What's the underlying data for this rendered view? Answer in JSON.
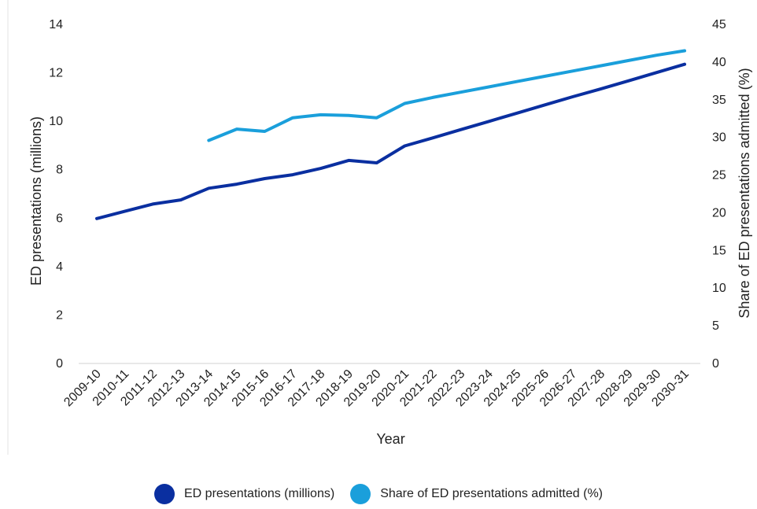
{
  "chart_data": {
    "type": "line",
    "xlabel": "Year",
    "ylabel": "ED presentations (millions)",
    "y2label": "Share of ED presentations admitted (%)",
    "ylim": [
      0,
      14
    ],
    "y2lim": [
      0,
      45
    ],
    "yticks": [
      "0",
      "2",
      "4",
      "6",
      "8",
      "10",
      "12",
      "14"
    ],
    "y2ticks": [
      "0",
      "5",
      "10",
      "15",
      "20",
      "25",
      "30",
      "35",
      "40",
      "45"
    ],
    "categories": [
      "2009-10",
      "2010-11",
      "2011-12",
      "2012-13",
      "2013-14",
      "2014-15",
      "2015-16",
      "2016-17",
      "2017-18",
      "2018-19",
      "2019-20",
      "2020-21",
      "2021-22",
      "2022-23",
      "2023-24",
      "2024-25",
      "2025-26",
      "2026-27",
      "2027-28",
      "2028-29",
      "2029-30",
      "2030-31"
    ],
    "series": [
      {
        "name": "ED presentations (millions)",
        "axis": "left",
        "color": "#0a2fa0",
        "values": [
          5.95,
          6.25,
          6.55,
          6.72,
          7.2,
          7.37,
          7.6,
          7.76,
          8.02,
          8.35,
          8.25,
          8.95,
          9.28,
          9.62,
          9.96,
          10.3,
          10.64,
          10.98,
          11.3,
          11.64,
          11.98,
          12.32
        ]
      },
      {
        "name": "Share of ED presentations admitted (%)",
        "axis": "right",
        "color": "#1a9fdb",
        "values": [
          null,
          null,
          null,
          null,
          29.5,
          31.0,
          30.7,
          32.5,
          32.9,
          32.8,
          32.5,
          34.4,
          35.2,
          35.9,
          36.6,
          37.3,
          38.0,
          38.7,
          39.4,
          40.1,
          40.8,
          41.4
        ]
      }
    ],
    "legend_position": "bottom",
    "grid": false
  }
}
